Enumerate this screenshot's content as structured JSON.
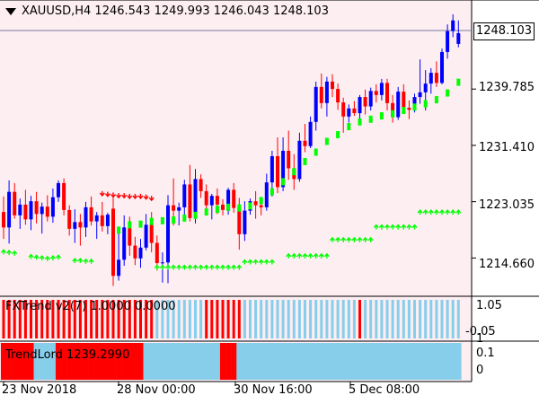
{
  "header": {
    "symbol": "XAUUSD,H4",
    "open": "1246.543",
    "high": "1249.993",
    "low": "1246.043",
    "close": "1248.103"
  },
  "current_price": "1248.103",
  "price_axis": [
    "1239.785",
    "1231.410",
    "1223.035",
    "1214.660"
  ],
  "indicator1": {
    "label": "FXTrend v2(7) 1.0000 0.0000",
    "axis": [
      "1.05",
      "-0.05"
    ]
  },
  "indicator2": {
    "label": "TrendLord 1239.2990",
    "axis": [
      "1",
      "0.1",
      "0"
    ]
  },
  "time_axis": [
    "23 Nov 2018",
    "28 Nov 00:00",
    "30 Nov 16:00",
    "5 Dec 08:00"
  ],
  "colors": {
    "background": "#fdeef2",
    "bull": "#0000ff",
    "bear": "#ff0000",
    "trend_up": "#00ff00",
    "trend_down": "#ff0000",
    "hist_blue": "#87ceeb",
    "hist_red": "#ff0000"
  },
  "chart_data": {
    "type": "candlestick",
    "ylim": [
      1209.5,
      1252.5
    ],
    "candles": [
      [
        1221.5,
        1223.8,
        1217.5,
        1219.2
      ],
      [
        1219.2,
        1226.2,
        1216.8,
        1224.5
      ],
      [
        1224.5,
        1225.8,
        1220.5,
        1221.0
      ],
      [
        1221.0,
        1223.5,
        1219.0,
        1222.6
      ],
      [
        1222.6,
        1224.8,
        1219.6,
        1220.4
      ],
      [
        1220.4,
        1223.9,
        1218.8,
        1223.1
      ],
      [
        1223.1,
        1224.5,
        1219.8,
        1221.2
      ],
      [
        1221.2,
        1222.9,
        1218.3,
        1222.3
      ],
      [
        1222.3,
        1224.0,
        1220.1,
        1220.8
      ],
      [
        1220.8,
        1225.0,
        1219.9,
        1223.7
      ],
      [
        1223.7,
        1226.2,
        1223.0,
        1225.8
      ],
      [
        1225.8,
        1226.5,
        1221.0,
        1221.8
      ],
      [
        1221.8,
        1222.5,
        1218.0,
        1219.0
      ],
      [
        1219.0,
        1221.9,
        1216.9,
        1220.0
      ],
      [
        1220.0,
        1221.2,
        1216.5,
        1219.2
      ],
      [
        1219.2,
        1223.0,
        1217.8,
        1222.2
      ],
      [
        1222.2,
        1223.8,
        1219.5,
        1220.1
      ],
      [
        1220.1,
        1221.5,
        1217.5,
        1221.0
      ],
      [
        1221.0,
        1223.0,
        1218.6,
        1219.4
      ],
      [
        1219.4,
        1221.4,
        1218.2,
        1221.1
      ],
      [
        1222.0,
        1224.2,
        1210.5,
        1212.0
      ],
      [
        1212.0,
        1218.6,
        1211.3,
        1214.4
      ],
      [
        1214.4,
        1221.0,
        1213.5,
        1219.2
      ],
      [
        1219.2,
        1220.8,
        1215.0,
        1216.5
      ],
      [
        1216.5,
        1217.8,
        1213.6,
        1214.6
      ],
      [
        1214.6,
        1217.5,
        1213.2,
        1216.2
      ],
      [
        1216.2,
        1221.2,
        1215.8,
        1219.6
      ],
      [
        1219.6,
        1221.5,
        1215.5,
        1216.9
      ],
      [
        1216.9,
        1218.0,
        1212.8,
        1213.9
      ],
      [
        1213.9,
        1215.5,
        1211.0,
        1214.0
      ],
      [
        1214.0,
        1224.0,
        1210.9,
        1222.5
      ],
      [
        1222.5,
        1226.5,
        1219.5,
        1221.7
      ],
      [
        1221.7,
        1222.9,
        1219.5,
        1222.2
      ],
      [
        1222.2,
        1226.3,
        1221.0,
        1225.6
      ],
      [
        1225.6,
        1228.5,
        1220.1,
        1220.6
      ],
      [
        1220.6,
        1227.9,
        1219.8,
        1226.4
      ],
      [
        1226.4,
        1227.1,
        1223.6,
        1224.6
      ],
      [
        1224.6,
        1225.6,
        1221.8,
        1222.5
      ],
      [
        1222.5,
        1224.2,
        1220.4,
        1223.9
      ],
      [
        1223.9,
        1225.0,
        1221.2,
        1222.6
      ],
      [
        1222.6,
        1223.4,
        1221.0,
        1221.8
      ],
      [
        1221.8,
        1225.1,
        1221.1,
        1224.8
      ],
      [
        1224.8,
        1225.8,
        1221.4,
        1222.1
      ],
      [
        1222.1,
        1223.6,
        1215.9,
        1218.2
      ],
      [
        1218.2,
        1223.1,
        1217.2,
        1221.7
      ],
      [
        1221.7,
        1223.5,
        1221.1,
        1223.1
      ],
      [
        1223.1,
        1224.6,
        1220.5,
        1222.5
      ],
      [
        1222.5,
        1223.4,
        1221.0,
        1222.2
      ],
      [
        1222.2,
        1227.2,
        1221.7,
        1225.9
      ],
      [
        1225.9,
        1230.6,
        1223.8,
        1229.8
      ],
      [
        1229.8,
        1232.6,
        1224.3,
        1225.2
      ],
      [
        1225.2,
        1232.6,
        1224.6,
        1230.6
      ],
      [
        1230.6,
        1233.6,
        1226.3,
        1228.0
      ],
      [
        1228.0,
        1230.1,
        1224.8,
        1226.4
      ],
      [
        1226.4,
        1233.3,
        1226.0,
        1232.1
      ],
      [
        1232.1,
        1234.6,
        1230.4,
        1231.3
      ],
      [
        1231.3,
        1235.7,
        1231.0,
        1234.9
      ],
      [
        1234.9,
        1240.9,
        1233.6,
        1240.1
      ],
      [
        1240.1,
        1242.1,
        1236.9,
        1237.7
      ],
      [
        1237.7,
        1241.6,
        1235.7,
        1240.9
      ],
      [
        1240.9,
        1242.0,
        1238.6,
        1239.8
      ],
      [
        1239.8,
        1240.6,
        1236.7,
        1237.8
      ],
      [
        1237.8,
        1238.5,
        1233.3,
        1235.7
      ],
      [
        1235.7,
        1237.5,
        1234.8,
        1236.9
      ],
      [
        1236.9,
        1238.0,
        1235.8,
        1236.2
      ],
      [
        1236.2,
        1238.9,
        1235.4,
        1238.6
      ],
      [
        1238.6,
        1239.7,
        1236.0,
        1237.2
      ],
      [
        1237.2,
        1240.0,
        1236.6,
        1239.5
      ],
      [
        1239.5,
        1240.5,
        1237.8,
        1238.9
      ],
      [
        1238.9,
        1241.3,
        1238.1,
        1240.7
      ],
      [
        1240.7,
        1241.3,
        1236.6,
        1237.7
      ],
      [
        1237.7,
        1238.9,
        1234.8,
        1235.6
      ],
      [
        1235.6,
        1240.1,
        1235.2,
        1239.4
      ],
      [
        1239.4,
        1240.5,
        1236.5,
        1237.0
      ],
      [
        1237.0,
        1238.1,
        1235.3,
        1236.7
      ],
      [
        1236.7,
        1239.1,
        1236.3,
        1238.6
      ],
      [
        1238.6,
        1244.2,
        1237.6,
        1239.3
      ],
      [
        1239.3,
        1242.6,
        1236.6,
        1240.6
      ],
      [
        1240.6,
        1242.9,
        1239.1,
        1242.2
      ],
      [
        1242.2,
        1243.9,
        1240.1,
        1240.7
      ],
      [
        1240.7,
        1245.8,
        1240.5,
        1245.3
      ],
      [
        1245.3,
        1249.4,
        1244.3,
        1248.4
      ],
      [
        1248.4,
        1250.9,
        1247.5,
        1250.0
      ],
      [
        1246.5,
        1250.0,
        1246.0,
        1248.1
      ]
    ],
    "trend_up": [
      [
        21,
        1218.8
      ],
      [
        23,
        1219.6
      ],
      [
        25,
        1219.7
      ],
      [
        27,
        1220.1
      ],
      [
        29,
        1220.2
      ],
      [
        31,
        1220.3
      ],
      [
        33,
        1220.6
      ],
      [
        35,
        1221.0
      ],
      [
        37,
        1221.5
      ],
      [
        39,
        1221.9
      ],
      [
        41,
        1222.2
      ],
      [
        43,
        1222.1
      ],
      [
        45,
        1222.4
      ],
      [
        47,
        1223.2
      ],
      [
        49,
        1224.5
      ],
      [
        51,
        1226.0
      ],
      [
        53,
        1227.5
      ],
      [
        55,
        1229.0
      ],
      [
        57,
        1230.4
      ],
      [
        59,
        1232.0
      ],
      [
        61,
        1233.0
      ],
      [
        63,
        1234.2
      ],
      [
        65,
        1234.9
      ],
      [
        67,
        1235.3
      ],
      [
        69,
        1235.8
      ],
      [
        71,
        1236.1
      ],
      [
        73,
        1236.6
      ],
      [
        75,
        1237.1
      ],
      [
        77,
        1237.6
      ],
      [
        79,
        1238.2
      ],
      [
        81,
        1239.2
      ],
      [
        83,
        1240.8
      ]
    ],
    "arrows_down": [
      [
        18,
        1224.2
      ],
      [
        19,
        1224.1
      ],
      [
        20,
        1224.0
      ],
      [
        21,
        1223.9
      ],
      [
        22,
        1223.9
      ],
      [
        23,
        1223.8
      ],
      [
        24,
        1223.8
      ],
      [
        25,
        1223.8
      ],
      [
        26,
        1223.7
      ],
      [
        27,
        1223.5
      ]
    ],
    "arrows_up": [
      [
        0,
        1215.6
      ],
      [
        1,
        1215.5
      ],
      [
        2,
        1215.4
      ],
      [
        5,
        1214.9
      ],
      [
        6,
        1214.8
      ],
      [
        7,
        1214.7
      ],
      [
        8,
        1214.6
      ],
      [
        9,
        1214.7
      ],
      [
        10,
        1214.8
      ],
      [
        13,
        1214.3
      ],
      [
        14,
        1214.3
      ],
      [
        15,
        1214.2
      ],
      [
        16,
        1214.2
      ],
      [
        28,
        1213.3
      ],
      [
        29,
        1213.3
      ],
      [
        30,
        1213.3
      ],
      [
        31,
        1213.3
      ],
      [
        32,
        1213.3
      ],
      [
        33,
        1213.3
      ],
      [
        34,
        1213.3
      ],
      [
        35,
        1213.3
      ],
      [
        36,
        1213.3
      ],
      [
        37,
        1213.3
      ],
      [
        38,
        1213.3
      ],
      [
        39,
        1213.3
      ],
      [
        40,
        1213.3
      ],
      [
        41,
        1213.3
      ],
      [
        42,
        1213.3
      ],
      [
        43,
        1213.3
      ],
      [
        44,
        1214.1
      ],
      [
        45,
        1214.1
      ],
      [
        46,
        1214.1
      ],
      [
        47,
        1214.1
      ],
      [
        48,
        1214.1
      ],
      [
        49,
        1214.1
      ],
      [
        52,
        1215.0
      ],
      [
        53,
        1215.0
      ],
      [
        54,
        1215.0
      ],
      [
        55,
        1215.0
      ],
      [
        56,
        1215.0
      ],
      [
        57,
        1215.0
      ],
      [
        58,
        1215.0
      ],
      [
        59,
        1215.0
      ],
      [
        60,
        1217.4
      ],
      [
        61,
        1217.4
      ],
      [
        62,
        1217.4
      ],
      [
        63,
        1217.4
      ],
      [
        64,
        1217.4
      ],
      [
        65,
        1217.4
      ],
      [
        66,
        1217.4
      ],
      [
        67,
        1217.4
      ],
      [
        68,
        1219.3
      ],
      [
        69,
        1219.3
      ],
      [
        70,
        1219.3
      ],
      [
        71,
        1219.3
      ],
      [
        72,
        1219.3
      ],
      [
        73,
        1219.3
      ],
      [
        74,
        1219.3
      ],
      [
        75,
        1219.3
      ],
      [
        76,
        1221.5
      ],
      [
        77,
        1221.5
      ],
      [
        78,
        1221.5
      ],
      [
        79,
        1221.5
      ],
      [
        80,
        1221.5
      ],
      [
        81,
        1221.5
      ],
      [
        82,
        1221.5
      ],
      [
        83,
        1221.5
      ]
    ],
    "fxtrend_red_bars": [
      0,
      1,
      2,
      3,
      4,
      5,
      6,
      7,
      8,
      9,
      10,
      11,
      12,
      13,
      14,
      15,
      16,
      17,
      18,
      19,
      20,
      21,
      22,
      23,
      24,
      25,
      26,
      27,
      37,
      38,
      39,
      40,
      41,
      42,
      43,
      65
    ],
    "trendlord_red_ranges": [
      [
        0,
        5
      ],
      [
        10,
        25
      ],
      [
        40,
        42
      ]
    ]
  }
}
